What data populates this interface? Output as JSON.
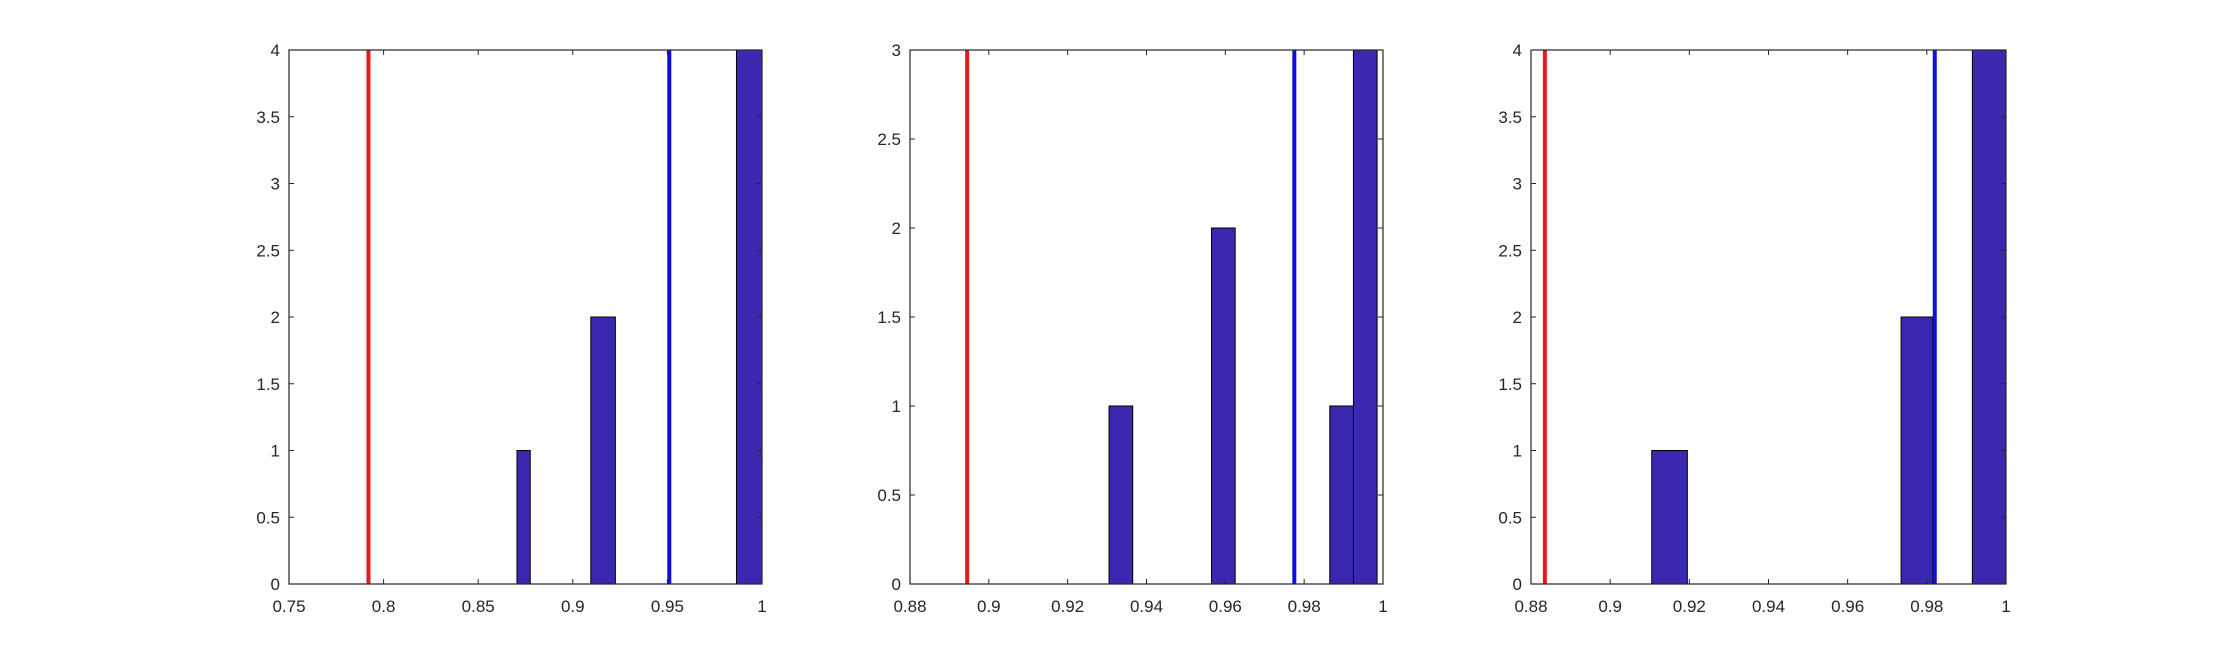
{
  "chart_data": [
    {
      "type": "bar",
      "subtype": "histogram",
      "xlim": [
        0.75,
        1.0
      ],
      "ylim": [
        0,
        4
      ],
      "xticks": [
        0.75,
        0.8,
        0.85,
        0.9,
        0.95,
        1.0
      ],
      "xtick_labels": [
        "0.75",
        "0.8",
        "0.85",
        "0.9",
        "0.95",
        "1"
      ],
      "yticks": [
        0,
        0.5,
        1,
        1.5,
        2,
        2.5,
        3,
        3.5,
        4
      ],
      "ytick_labels": [
        "0",
        "0.5",
        "1",
        "1.5",
        "2",
        "2.5",
        "3",
        "3.5",
        "4"
      ],
      "bins": [
        {
          "x0": 0.8705,
          "x1": 0.8775,
          "count": 1
        },
        {
          "x0": 0.9095,
          "x1": 0.9225,
          "count": 2
        },
        {
          "x0": 0.95,
          "x1": 0.9865,
          "count": 0
        },
        {
          "x0": 0.9865,
          "x1": 1.0,
          "count": 4
        }
      ],
      "bar_color": "#3b28b0",
      "vlines": [
        {
          "x": 0.792,
          "color": "#e8181d"
        },
        {
          "x": 0.951,
          "color": "#0f10d6"
        }
      ],
      "grid": false,
      "legend": "none"
    },
    {
      "type": "bar",
      "subtype": "histogram",
      "xlim": [
        0.88,
        1.0
      ],
      "ylim": [
        0,
        3
      ],
      "xticks": [
        0.88,
        0.9,
        0.92,
        0.94,
        0.96,
        0.98,
        1.0
      ],
      "xtick_labels": [
        "0.88",
        "0.9",
        "0.92",
        "0.94",
        "0.96",
        "0.98",
        "1"
      ],
      "yticks": [
        0,
        0.5,
        1,
        1.5,
        2,
        2.5,
        3
      ],
      "ytick_labels": [
        "0",
        "0.5",
        "1",
        "1.5",
        "2",
        "2.5",
        "3"
      ],
      "bins": [
        {
          "x0": 0.9305,
          "x1": 0.9365,
          "count": 1
        },
        {
          "x0": 0.9365,
          "x1": 0.9565,
          "count": 0
        },
        {
          "x0": 0.9565,
          "x1": 0.9625,
          "count": 2
        },
        {
          "x0": 0.9865,
          "x1": 0.9925,
          "count": 1
        },
        {
          "x0": 0.9925,
          "x1": 0.9985,
          "count": 3
        }
      ],
      "bar_color": "#3b28b0",
      "vlines": [
        {
          "x": 0.8945,
          "color": "#e8181d"
        },
        {
          "x": 0.9775,
          "color": "#0f10d6"
        }
      ],
      "grid": false,
      "legend": "none"
    },
    {
      "type": "bar",
      "subtype": "histogram",
      "xlim": [
        0.88,
        1.0
      ],
      "ylim": [
        0,
        4
      ],
      "xticks": [
        0.88,
        0.9,
        0.92,
        0.94,
        0.96,
        0.98,
        1.0
      ],
      "xtick_labels": [
        "0.88",
        "0.9",
        "0.92",
        "0.94",
        "0.96",
        "0.98",
        "1"
      ],
      "yticks": [
        0,
        0.5,
        1,
        1.5,
        2,
        2.5,
        3,
        3.5,
        4
      ],
      "ytick_labels": [
        "0",
        "0.5",
        "1",
        "1.5",
        "2",
        "2.5",
        "3",
        "3.5",
        "4"
      ],
      "bins": [
        {
          "x0": 0.9105,
          "x1": 0.9195,
          "count": 1
        },
        {
          "x0": 0.9195,
          "x1": 0.9735,
          "count": 0
        },
        {
          "x0": 0.9735,
          "x1": 0.9815,
          "count": 2
        },
        {
          "x0": 0.9915,
          "x1": 1.0,
          "count": 4
        }
      ],
      "bar_color": "#3b28b0",
      "vlines": [
        {
          "x": 0.8835,
          "color": "#e8181d"
        },
        {
          "x": 0.982,
          "color": "#0f10d6"
        }
      ],
      "grid": false,
      "legend": "none"
    }
  ]
}
